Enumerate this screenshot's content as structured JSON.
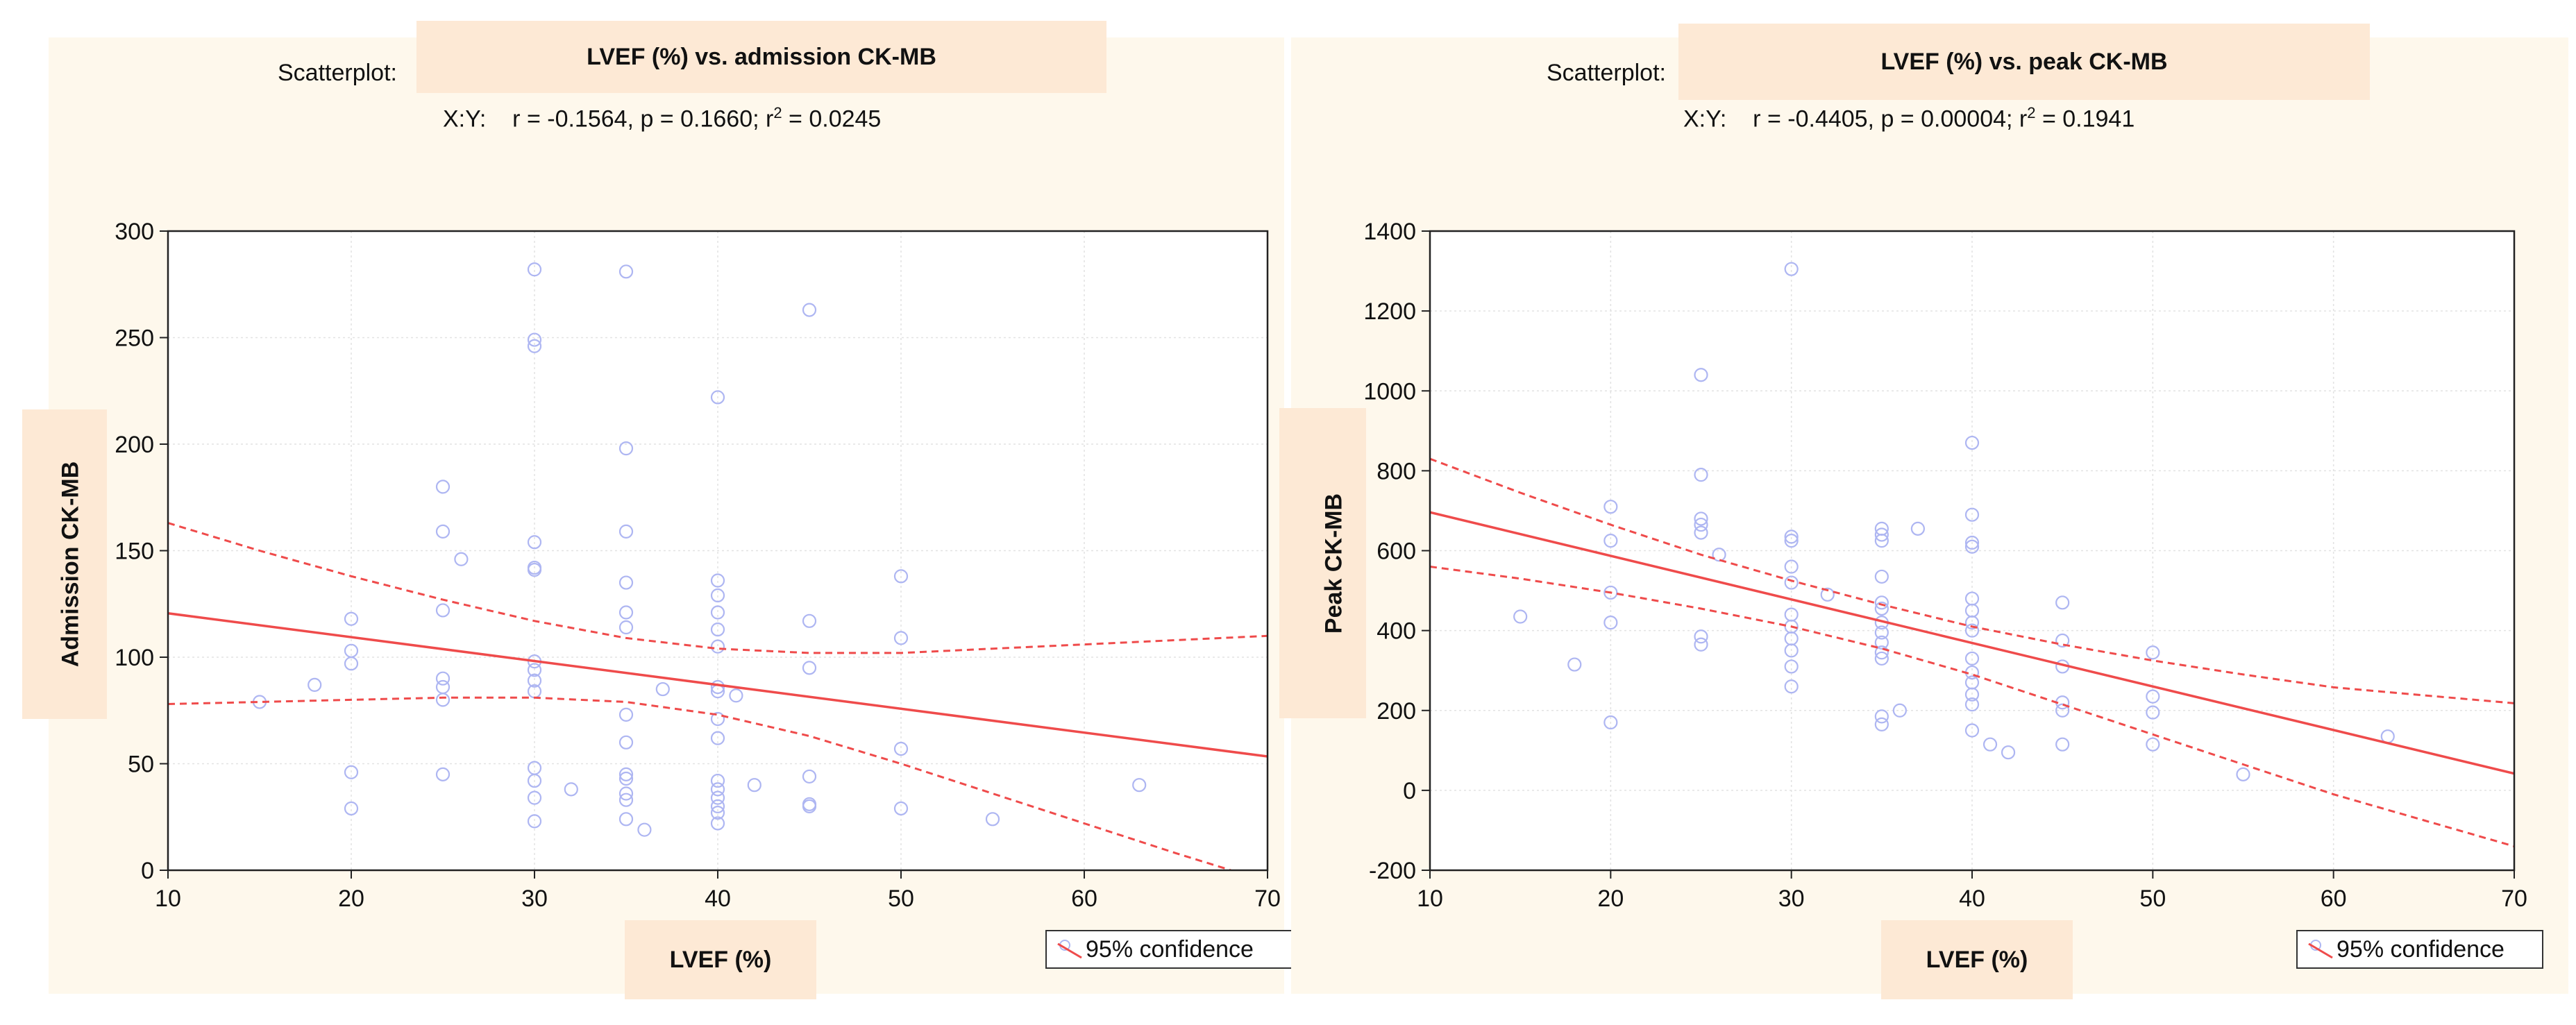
{
  "colors": {
    "line": "#ef4b4b",
    "point": "#aeb6f2",
    "panel_bg": "#fef8ec",
    "label_bg": "#fde9d5"
  },
  "chart_data": [
    {
      "type": "scatter",
      "scatter_prefix": "Scatterplot:",
      "title": "LVEF (%) vs. admission CK-MB",
      "stats_prefix": "X:Y:",
      "stats_r": "r = -0.1564, p = 0.1660; r",
      "stats_r2": "= 0.0245",
      "superscript": "2",
      "xlabel": "LVEF (%)",
      "ylabel": "Admission CK-MB",
      "xlim": [
        10,
        70
      ],
      "ylim": [
        0,
        300
      ],
      "xticks": [
        10,
        20,
        30,
        40,
        50,
        60,
        70
      ],
      "yticks": [
        0,
        50,
        100,
        150,
        200,
        250,
        300
      ],
      "legend": "95% confidence",
      "fit": {
        "intercept": 131.8,
        "slope": -1.12
      },
      "ci_upper": [
        [
          10,
          163
        ],
        [
          15,
          150
        ],
        [
          20,
          138
        ],
        [
          25,
          127
        ],
        [
          30,
          117
        ],
        [
          35,
          109
        ],
        [
          40,
          104
        ],
        [
          45,
          102
        ],
        [
          50,
          102
        ],
        [
          55,
          104
        ],
        [
          60,
          106
        ],
        [
          65,
          108
        ],
        [
          70,
          110
        ]
      ],
      "ci_lower": [
        [
          10,
          78
        ],
        [
          15,
          79
        ],
        [
          20,
          80
        ],
        [
          25,
          81
        ],
        [
          30,
          81
        ],
        [
          35,
          79
        ],
        [
          40,
          73
        ],
        [
          45,
          63
        ],
        [
          50,
          50
        ],
        [
          55,
          36
        ],
        [
          60,
          22
        ],
        [
          65,
          8
        ],
        [
          68,
          0
        ]
      ],
      "points": [
        [
          15,
          79
        ],
        [
          18,
          87
        ],
        [
          20,
          118
        ],
        [
          20,
          103
        ],
        [
          20,
          97
        ],
        [
          20,
          46
        ],
        [
          20,
          29
        ],
        [
          25,
          180
        ],
        [
          25,
          159
        ],
        [
          25,
          122
        ],
        [
          25,
          90
        ],
        [
          25,
          86
        ],
        [
          25,
          80
        ],
        [
          25,
          45
        ],
        [
          26,
          146
        ],
        [
          30,
          282
        ],
        [
          30,
          249
        ],
        [
          30,
          246
        ],
        [
          30,
          154
        ],
        [
          30,
          142
        ],
        [
          30,
          141
        ],
        [
          30,
          98
        ],
        [
          30,
          94
        ],
        [
          30,
          89
        ],
        [
          30,
          84
        ],
        [
          30,
          48
        ],
        [
          30,
          42
        ],
        [
          30,
          34
        ],
        [
          30,
          23
        ],
        [
          32,
          38
        ],
        [
          35,
          281
        ],
        [
          35,
          198
        ],
        [
          35,
          159
        ],
        [
          35,
          135
        ],
        [
          35,
          121
        ],
        [
          35,
          114
        ],
        [
          35,
          73
        ],
        [
          35,
          60
        ],
        [
          35,
          45
        ],
        [
          35,
          43
        ],
        [
          35,
          36
        ],
        [
          35,
          33
        ],
        [
          35,
          24
        ],
        [
          36,
          19
        ],
        [
          37,
          85
        ],
        [
          40,
          222
        ],
        [
          40,
          136
        ],
        [
          40,
          129
        ],
        [
          40,
          121
        ],
        [
          40,
          113
        ],
        [
          40,
          105
        ],
        [
          40,
          86
        ],
        [
          40,
          84
        ],
        [
          40,
          71
        ],
        [
          40,
          62
        ],
        [
          40,
          42
        ],
        [
          40,
          38
        ],
        [
          40,
          34
        ],
        [
          40,
          30
        ],
        [
          40,
          27
        ],
        [
          40,
          22
        ],
        [
          41,
          82
        ],
        [
          42,
          40
        ],
        [
          45,
          263
        ],
        [
          45,
          117
        ],
        [
          45,
          95
        ],
        [
          45,
          44
        ],
        [
          45,
          31
        ],
        [
          45,
          30
        ],
        [
          50,
          138
        ],
        [
          50,
          109
        ],
        [
          50,
          57
        ],
        [
          50,
          29
        ],
        [
          55,
          24
        ],
        [
          63,
          40
        ]
      ]
    },
    {
      "type": "scatter",
      "scatter_prefix": "Scatterplot:",
      "title": "LVEF (%) vs. peak CK-MB",
      "stats_prefix": "X:Y:",
      "stats_r": "r = -0.4405, p = 0.00004; r",
      "stats_r2": "= 0.1941",
      "superscript": "2",
      "xlabel": "LVEF (%)",
      "ylabel": "Peak CK-MB",
      "xlim": [
        10,
        70
      ],
      "ylim": [
        -200,
        1400
      ],
      "xticks": [
        10,
        20,
        30,
        40,
        50,
        60,
        70
      ],
      "yticks": [
        -200,
        0,
        200,
        400,
        600,
        800,
        1000,
        1200,
        1400
      ],
      "legend": "95% confidence",
      "fit": {
        "intercept": 805,
        "slope": -10.9
      },
      "ci_upper": [
        [
          10,
          830
        ],
        [
          15,
          745
        ],
        [
          20,
          665
        ],
        [
          25,
          590
        ],
        [
          30,
          525
        ],
        [
          35,
          465
        ],
        [
          40,
          410
        ],
        [
          45,
          365
        ],
        [
          50,
          325
        ],
        [
          55,
          290
        ],
        [
          60,
          258
        ],
        [
          65,
          238
        ],
        [
          70,
          218
        ]
      ],
      "ci_lower": [
        [
          10,
          560
        ],
        [
          15,
          530
        ],
        [
          20,
          495
        ],
        [
          25,
          455
        ],
        [
          30,
          410
        ],
        [
          35,
          355
        ],
        [
          40,
          290
        ],
        [
          45,
          215
        ],
        [
          50,
          140
        ],
        [
          55,
          65
        ],
        [
          60,
          -10
        ],
        [
          65,
          -75
        ],
        [
          70,
          -140
        ]
      ],
      "points": [
        [
          15,
          435
        ],
        [
          18,
          315
        ],
        [
          20,
          710
        ],
        [
          20,
          625
        ],
        [
          20,
          495
        ],
        [
          20,
          420
        ],
        [
          20,
          170
        ],
        [
          25,
          1040
        ],
        [
          25,
          790
        ],
        [
          25,
          680
        ],
        [
          25,
          665
        ],
        [
          25,
          645
        ],
        [
          25,
          385
        ],
        [
          25,
          365
        ],
        [
          26,
          590
        ],
        [
          30,
          1305
        ],
        [
          30,
          635
        ],
        [
          30,
          625
        ],
        [
          30,
          560
        ],
        [
          30,
          520
        ],
        [
          30,
          440
        ],
        [
          30,
          410
        ],
        [
          30,
          380
        ],
        [
          30,
          350
        ],
        [
          30,
          310
        ],
        [
          30,
          260
        ],
        [
          32,
          490
        ],
        [
          35,
          655
        ],
        [
          35,
          640
        ],
        [
          35,
          625
        ],
        [
          35,
          535
        ],
        [
          35,
          470
        ],
        [
          35,
          455
        ],
        [
          35,
          420
        ],
        [
          35,
          395
        ],
        [
          35,
          370
        ],
        [
          35,
          345
        ],
        [
          35,
          330
        ],
        [
          35,
          185
        ],
        [
          35,
          165
        ],
        [
          36,
          200
        ],
        [
          37,
          655
        ],
        [
          40,
          870
        ],
        [
          40,
          690
        ],
        [
          40,
          620
        ],
        [
          40,
          610
        ],
        [
          40,
          480
        ],
        [
          40,
          450
        ],
        [
          40,
          420
        ],
        [
          40,
          400
        ],
        [
          40,
          330
        ],
        [
          40,
          295
        ],
        [
          40,
          270
        ],
        [
          40,
          240
        ],
        [
          40,
          215
        ],
        [
          40,
          150
        ],
        [
          41,
          115
        ],
        [
          42,
          95
        ],
        [
          45,
          470
        ],
        [
          45,
          375
        ],
        [
          45,
          310
        ],
        [
          45,
          220
        ],
        [
          45,
          200
        ],
        [
          45,
          115
        ],
        [
          50,
          345
        ],
        [
          50,
          235
        ],
        [
          50,
          195
        ],
        [
          50,
          115
        ],
        [
          55,
          40
        ],
        [
          63,
          135
        ]
      ]
    }
  ]
}
